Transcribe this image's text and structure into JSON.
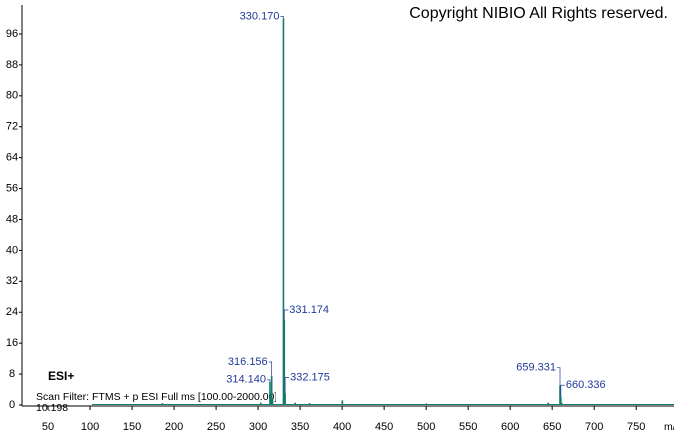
{
  "chart_data": {
    "type": "spectrum",
    "watermark": "Copyright NIBIO All Rights reserved.",
    "ionization": "ESI+",
    "scan_filter": "Scan Filter: FTMS + p ESI Full ms [100.00-2000.00]",
    "retention": "10.198",
    "x_label": "m/z",
    "color": "#137a6c",
    "label_color": "#1f3a9a",
    "x": [
      186.1,
      303.2,
      314.14,
      315.1,
      316.156,
      317.2,
      330.17,
      331.174,
      332.175,
      344.2,
      361.2,
      400.3,
      500.3,
      645.3,
      659.331,
      660.336,
      661.3
    ],
    "values": [
      0.5,
      0.6,
      6,
      3,
      7.5,
      1.5,
      100,
      22,
      3,
      0.6,
      0.5,
      1.2,
      0.4,
      0.6,
      5,
      2,
      0.6
    ],
    "peak_labels": [
      null,
      null,
      "314.140",
      null,
      "316.156",
      null,
      "330.170",
      "331.174",
      "332.175",
      null,
      null,
      null,
      null,
      null,
      "659.331",
      "660.336",
      null
    ],
    "xlim": [
      19,
      795
    ],
    "ylim": [
      0,
      103.5
    ],
    "xticks": [
      50,
      100,
      150,
      200,
      250,
      300,
      350,
      400,
      450,
      500,
      550,
      600,
      650,
      700,
      750
    ],
    "yticks": [
      0,
      8,
      16,
      24,
      32,
      40,
      48,
      56,
      64,
      72,
      80,
      88,
      96
    ]
  }
}
